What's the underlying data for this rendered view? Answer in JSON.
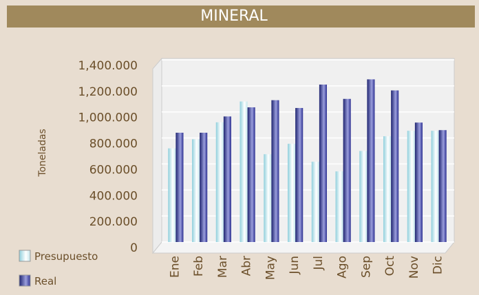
{
  "chart_data": {
    "type": "bar",
    "title": "MINERAL",
    "y_label": "Toneladas",
    "categories": [
      "Ene",
      "Feb",
      "Mar",
      "Abr",
      "May",
      "Jun",
      "Jul",
      "Ago",
      "Sep",
      "Oct",
      "Nov",
      "Dic"
    ],
    "series": [
      {
        "name": "Presupuesto",
        "color": "#a8d8e0",
        "values": [
          720000,
          790000,
          920000,
          1080000,
          675000,
          755000,
          617000,
          543000,
          700000,
          813000,
          855000,
          855000
        ]
      },
      {
        "name": "Real",
        "color": "#2e3192",
        "values": [
          840000,
          840000,
          965000,
          1035000,
          1090000,
          1030000,
          1210000,
          1100000,
          1250000,
          1165000,
          918000,
          860000
        ]
      }
    ],
    "ylim": [
      0,
      1400000
    ],
    "yticks": [
      {
        "value": 0,
        "label": "0"
      },
      {
        "value": 200000,
        "label": "200.000"
      },
      {
        "value": 400000,
        "label": "400.000"
      },
      {
        "value": 600000,
        "label": "600.000"
      },
      {
        "value": 800000,
        "label": "800.000"
      },
      {
        "value": 1000000,
        "label": "1,000.000"
      },
      {
        "value": 1200000,
        "label": "1,200.000"
      },
      {
        "value": 1400000,
        "label": "1,400.000"
      }
    ],
    "grid": true
  }
}
